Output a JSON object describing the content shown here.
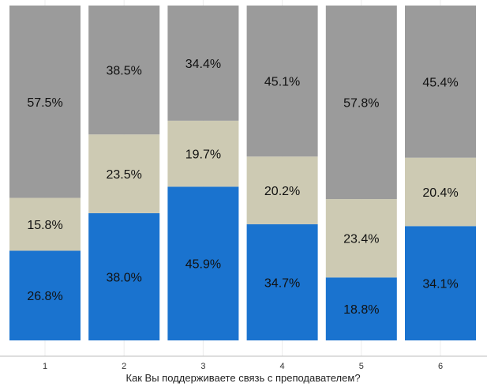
{
  "chart_data": {
    "type": "bar",
    "stacked": true,
    "normalized": true,
    "categories": [
      "1",
      "2",
      "3",
      "4",
      "5",
      "6"
    ],
    "series": [
      {
        "values": [
          26.8,
          38.0,
          45.9,
          34.7,
          18.8,
          34.1
        ],
        "color": "#1a73cf"
      },
      {
        "values": [
          15.8,
          23.5,
          19.7,
          20.2,
          23.4,
          20.4
        ],
        "color": "#cdcab3"
      },
      {
        "values": [
          57.5,
          38.5,
          34.4,
          45.1,
          57.8,
          45.4
        ],
        "color": "#9b9b9b"
      }
    ],
    "labels": [
      [
        "26.8%",
        "38.0%",
        "45.9%",
        "34.7%",
        "18.8%",
        "34.1%"
      ],
      [
        "15.8%",
        "23.5%",
        "19.7%",
        "20.2%",
        "23.4%",
        "20.4%"
      ],
      [
        "57.5%",
        "38.5%",
        "34.4%",
        "45.1%",
        "57.8%",
        "45.4%"
      ]
    ],
    "xlabel": "Как Вы поддерживаете связь с преподавателем?",
    "ylabel": "",
    "ylim": [
      0,
      100
    ],
    "grid": true,
    "legend": "none"
  }
}
